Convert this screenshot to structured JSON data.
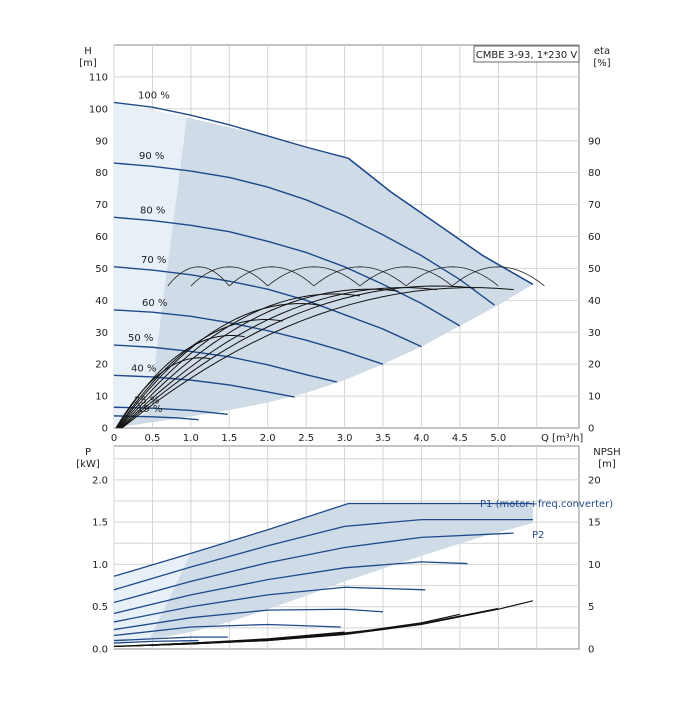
{
  "chart_data": [
    {
      "type": "line",
      "title": "CMBE 3-93, 1*230 V",
      "ylabel_left": "H\n[m]",
      "ylabel_right": "eta\n[%]",
      "xlabel": "Q [m³/h]",
      "xlim": [
        0,
        6.05
      ],
      "ylim": [
        0,
        120
      ],
      "x_ticks": [
        "0",
        "0.5",
        "1.0",
        "1.5",
        "2.0",
        "2.5",
        "3.0",
        "3.5",
        "4.0",
        "4.5",
        "5.0"
      ],
      "y_ticks_left": [
        "0",
        "10",
        "20",
        "30",
        "40",
        "50",
        "60",
        "70",
        "80",
        "90",
        "100",
        "110"
      ],
      "y_ticks_right": [
        "0",
        "10",
        "20",
        "30",
        "40",
        "50",
        "60",
        "70",
        "80",
        "90"
      ],
      "grid": true,
      "operating_envelope": [
        [
          0,
          102
        ],
        [
          1.0,
          97
        ],
        [
          2.0,
          91.5
        ],
        [
          3.05,
          84.5
        ],
        [
          3.6,
          74
        ],
        [
          4.2,
          64
        ],
        [
          4.8,
          54
        ],
        [
          5.45,
          45
        ],
        [
          5.0,
          38.5
        ],
        [
          4.5,
          32
        ],
        [
          4.0,
          25.5
        ],
        [
          3.5,
          20
        ],
        [
          3.0,
          15
        ],
        [
          2.5,
          11
        ],
        [
          2.0,
          8
        ],
        [
          1.5,
          5.6
        ],
        [
          1.0,
          3.6
        ],
        [
          0.5,
          1.8
        ],
        [
          0,
          0
        ]
      ],
      "speed_curves": [
        {
          "name": "100 %",
          "x": [
            0,
            0.5,
            1.0,
            1.5,
            2.0,
            2.5,
            3.05,
            3.6,
            4.2,
            4.8,
            5.45
          ],
          "y": [
            102,
            100.5,
            98,
            95,
            91.5,
            88,
            84.5,
            74,
            64,
            54,
            45
          ]
        },
        {
          "name": "90 %",
          "x": [
            0,
            0.5,
            1.0,
            1.5,
            2.0,
            2.5,
            3.0,
            3.5,
            4.0,
            4.5,
            4.95
          ],
          "y": [
            83,
            82,
            80.5,
            78.5,
            75.5,
            71.5,
            66.5,
            60.5,
            54,
            46.5,
            38.5
          ]
        },
        {
          "name": "80 %",
          "x": [
            0,
            0.5,
            1.0,
            1.5,
            2.0,
            2.5,
            3.0,
            3.5,
            4.0,
            4.5
          ],
          "y": [
            66,
            65,
            63.5,
            61.5,
            58.5,
            55,
            50.5,
            45,
            39,
            32
          ]
        },
        {
          "name": "70 %",
          "x": [
            0,
            0.5,
            1.0,
            1.5,
            2.0,
            2.5,
            3.0,
            3.5,
            4.0
          ],
          "y": [
            50.5,
            49.5,
            48,
            46,
            43.5,
            40,
            35.5,
            31,
            25.5
          ]
        },
        {
          "name": "60 %",
          "x": [
            0,
            0.5,
            1.0,
            1.5,
            2.0,
            2.5,
            3.0,
            3.5
          ],
          "y": [
            37,
            36.3,
            35,
            33,
            30.5,
            27.5,
            24,
            20
          ]
        },
        {
          "name": "50 %",
          "x": [
            0,
            0.5,
            1.0,
            1.5,
            2.0,
            2.5,
            2.9
          ],
          "y": [
            26,
            25.3,
            24,
            22.3,
            19.8,
            16.7,
            14.4
          ]
        },
        {
          "name": "40 %",
          "x": [
            0,
            0.5,
            1.0,
            1.5,
            2.0,
            2.35
          ],
          "y": [
            16.5,
            16,
            15,
            13.5,
            11.3,
            9.7
          ]
        },
        {
          "name": "25 %",
          "x": [
            0,
            0.5,
            1.0,
            1.48
          ],
          "y": [
            6.5,
            6.2,
            5.5,
            4.3
          ]
        },
        {
          "name": "19 %",
          "x": [
            0,
            0.5,
            0.8,
            1.1
          ],
          "y": [
            3.8,
            3.5,
            3.2,
            2.6
          ]
        }
      ]
    },
    {
      "type": "line",
      "ylabel_left": "P\n[kW]",
      "ylabel_right": "NPSH\n[m]",
      "xlim": [
        0,
        6.05
      ],
      "ylim": [
        0,
        2.4
      ],
      "y_ticks_left": [
        "0.0",
        "0.5",
        "1.0",
        "1.5",
        "2.0"
      ],
      "y_ticks_right": [
        "0",
        "5",
        "10",
        "15",
        "20"
      ],
      "grid": true,
      "labels": [
        "P1 (motor+freq.converter)",
        "P2"
      ],
      "power_envelope": [
        [
          0,
          0.86
        ],
        [
          1.0,
          1.13
        ],
        [
          2.0,
          1.41
        ],
        [
          3.05,
          1.72
        ],
        [
          4.5,
          1.72
        ],
        [
          5.45,
          1.72
        ],
        [
          5.45,
          1.49
        ],
        [
          4.8,
          1.33
        ],
        [
          4.2,
          1.16
        ],
        [
          3.6,
          0.98
        ],
        [
          3.0,
          0.8
        ],
        [
          2.5,
          0.63
        ],
        [
          2.0,
          0.47
        ],
        [
          1.5,
          0.32
        ],
        [
          1.0,
          0.2
        ],
        [
          0.4,
          0.1
        ],
        [
          0,
          0.08
        ]
      ],
      "p1_curves": [
        {
          "x": [
            0,
            1.0,
            2.0,
            3.05,
            4.0,
            5.45
          ],
          "y": [
            0.86,
            1.13,
            1.41,
            1.72,
            1.72,
            1.72
          ]
        },
        {
          "x": [
            0,
            1.0,
            2.0,
            3.0,
            4.0,
            5.45
          ],
          "y": [
            0.7,
            0.97,
            1.22,
            1.45,
            1.53,
            1.53
          ]
        },
        {
          "x": [
            0,
            1.0,
            2.0,
            3.0,
            4.0,
            5.2
          ],
          "y": [
            0.55,
            0.8,
            1.02,
            1.2,
            1.32,
            1.37
          ]
        },
        {
          "x": [
            0,
            1.0,
            2.0,
            3.0,
            4.0,
            4.6
          ],
          "y": [
            0.42,
            0.64,
            0.82,
            0.96,
            1.03,
            1.01
          ]
        },
        {
          "x": [
            0,
            1.0,
            2.0,
            3.0,
            4.05
          ],
          "y": [
            0.32,
            0.5,
            0.64,
            0.73,
            0.7
          ]
        },
        {
          "x": [
            0,
            1.0,
            2.0,
            3.0,
            3.5
          ],
          "y": [
            0.23,
            0.37,
            0.46,
            0.47,
            0.44
          ]
        },
        {
          "x": [
            0,
            1.0,
            2.0,
            2.95
          ],
          "y": [
            0.16,
            0.26,
            0.29,
            0.26
          ]
        },
        {
          "x": [
            0,
            1.0,
            1.48
          ],
          "y": [
            0.1,
            0.14,
            0.14
          ]
        },
        {
          "x": [
            0,
            0.5,
            1.1
          ],
          "y": [
            0.07,
            0.09,
            0.1
          ]
        }
      ],
      "npsh_curves": [
        {
          "x": [
            0,
            1.0,
            2.0,
            3.0,
            4.0,
            5.0,
            5.45
          ],
          "y": [
            0.3,
            0.6,
            1.0,
            1.7,
            2.9,
            4.7,
            5.7
          ]
        },
        {
          "x": [
            0,
            1.0,
            2.0,
            3.0,
            4.0,
            5.0
          ],
          "y": [
            0.3,
            0.6,
            1.0,
            1.8,
            3.0,
            4.8
          ]
        },
        {
          "x": [
            0,
            1.0,
            2.0,
            3.0,
            4.0,
            4.5
          ],
          "y": [
            0.3,
            0.6,
            1.1,
            1.8,
            3.1,
            4.1
          ]
        },
        {
          "x": [
            0,
            1.0,
            2.0,
            3.0,
            3.5
          ],
          "y": [
            0.3,
            0.7,
            1.1,
            1.9,
            2.4
          ]
        },
        {
          "x": [
            0,
            1.0,
            2.0,
            3.0
          ],
          "y": [
            0.3,
            0.7,
            1.2,
            2.0
          ]
        }
      ]
    }
  ]
}
